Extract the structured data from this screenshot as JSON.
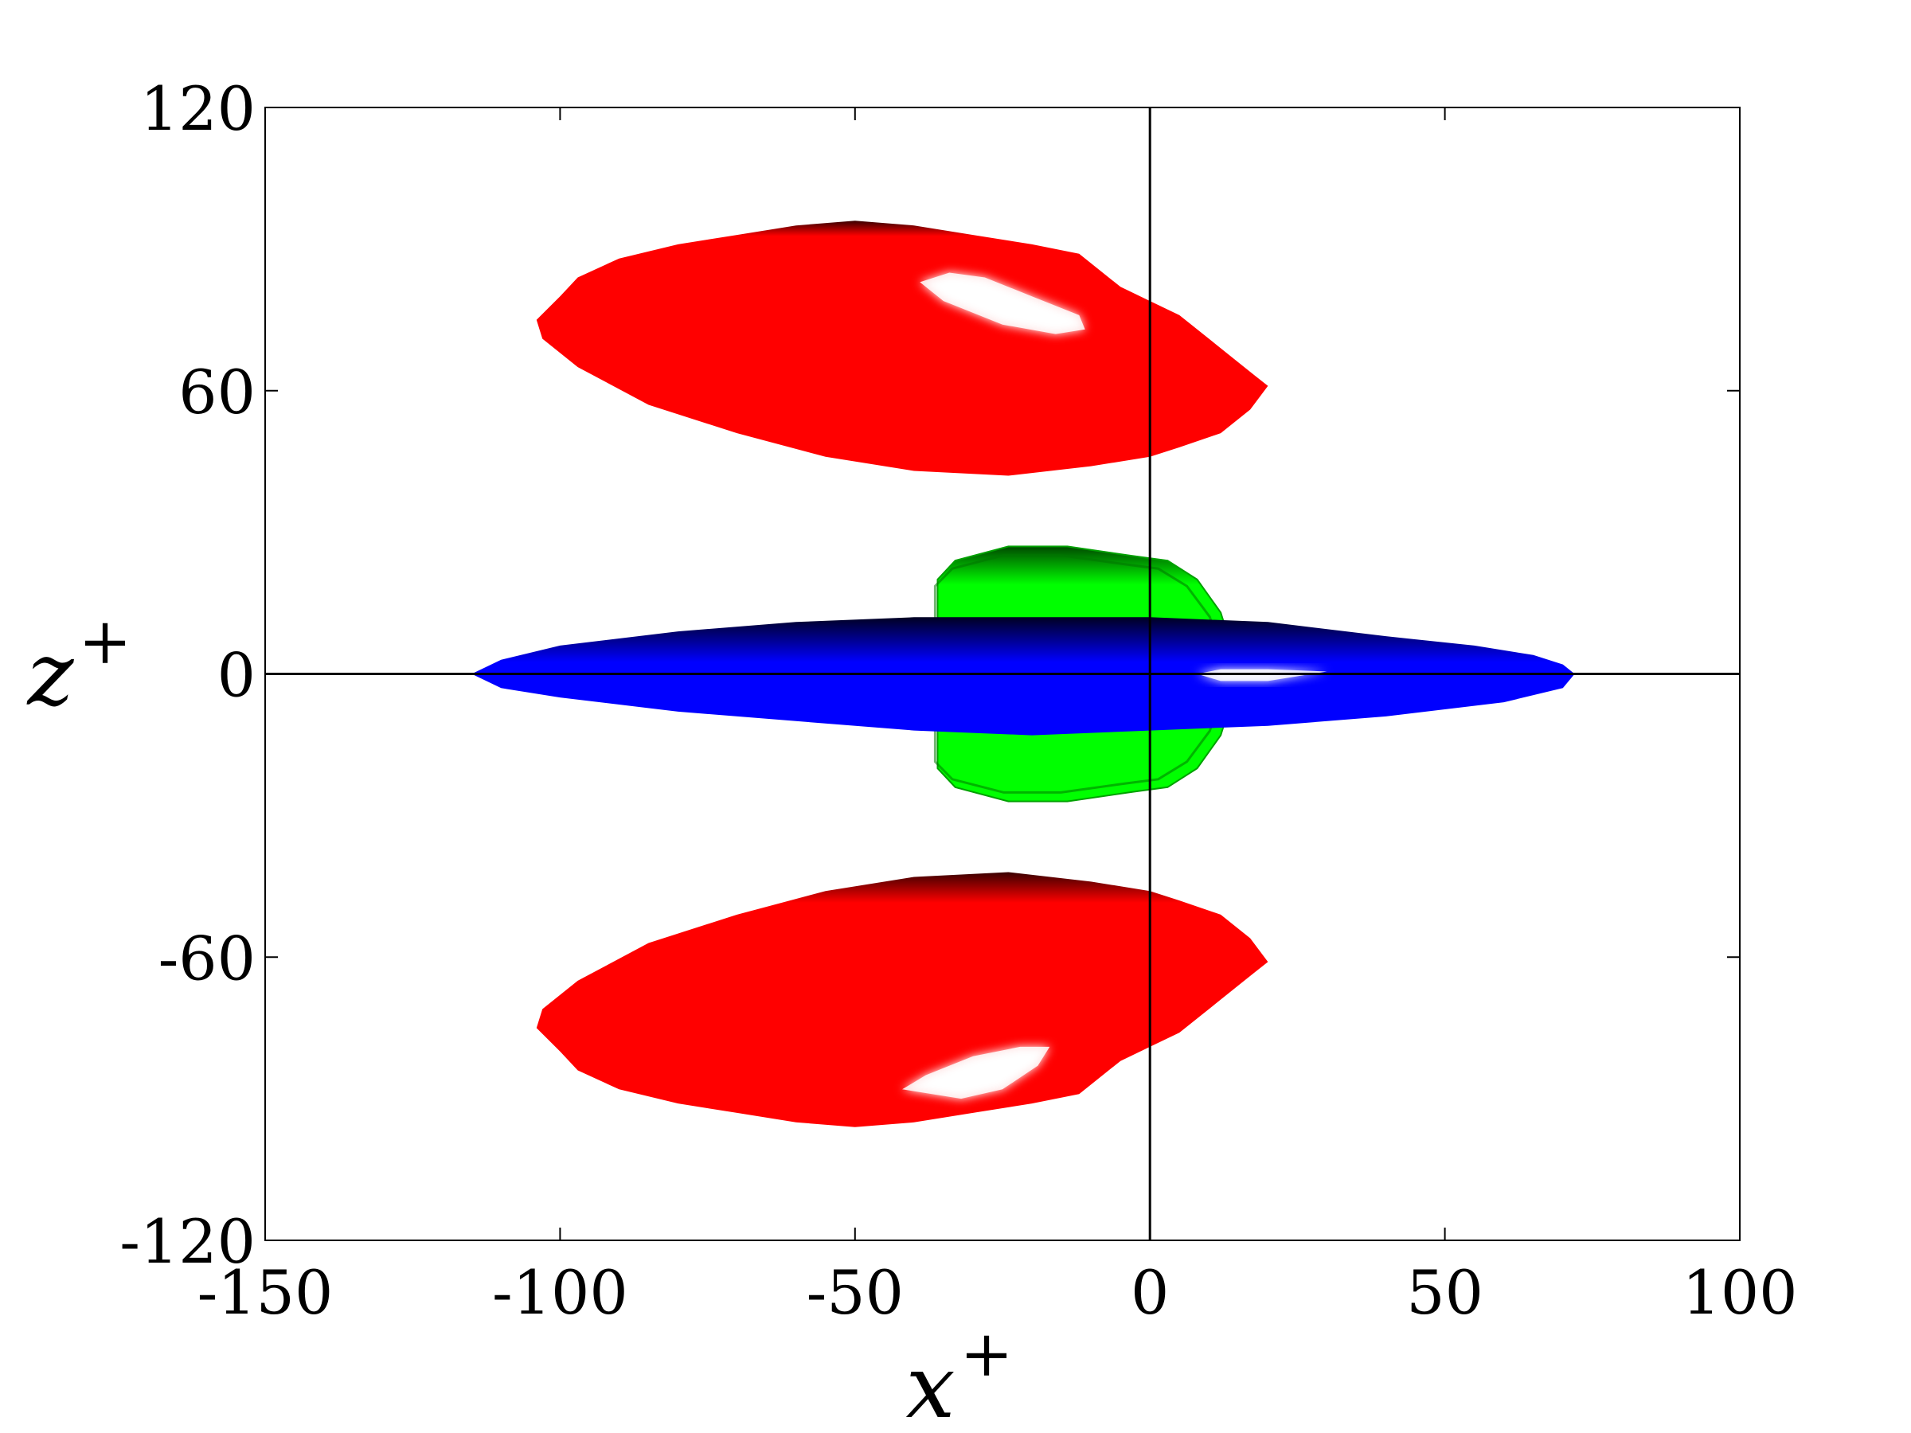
{
  "chart_data": {
    "type": "other",
    "xlabel": "x",
    "xlabel_sup": "+",
    "ylabel": "z",
    "ylabel_sup": "+",
    "xlim": [
      -150,
      100
    ],
    "ylim": [
      -120,
      120
    ],
    "x_ticks": [
      -150,
      -100,
      -50,
      0,
      50,
      100
    ],
    "y_ticks": [
      -120,
      -60,
      0,
      60,
      120
    ],
    "x_tick_labels": [
      "-150",
      "-100",
      "-50",
      "0",
      "50",
      "100"
    ],
    "y_tick_labels": [
      "-120",
      "-60",
      "0",
      "60",
      "120"
    ],
    "grid": false,
    "reference_lines": {
      "x": 0,
      "y": 0
    },
    "colors": {
      "red_structure": "#ff0000",
      "red_shade": "#4a0000",
      "blue_structure": "#0000ff",
      "blue_shade": "#000033",
      "green_structure": "#00ff00",
      "green_shade": "#004400",
      "highlight": "#ffffff"
    },
    "structures": [
      {
        "color": "red",
        "outline": [
          [
            -104,
            75
          ],
          [
            -100,
            80
          ],
          [
            -97,
            84
          ],
          [
            -90,
            88
          ],
          [
            -80,
            91
          ],
          [
            -70,
            93
          ],
          [
            -60,
            95
          ],
          [
            -50,
            96
          ],
          [
            -40,
            95
          ],
          [
            -30,
            93
          ],
          [
            -20,
            91
          ],
          [
            -12,
            89
          ],
          [
            -5,
            82
          ],
          [
            0,
            79
          ],
          [
            5,
            76
          ],
          [
            10,
            71
          ],
          [
            15,
            66
          ],
          [
            18,
            63
          ],
          [
            20,
            61
          ],
          [
            17,
            56
          ],
          [
            12,
            51
          ],
          [
            5,
            48
          ],
          [
            0,
            46
          ],
          [
            -10,
            44
          ],
          [
            -24,
            42
          ],
          [
            -40,
            43
          ],
          [
            -55,
            46
          ],
          [
            -70,
            51
          ],
          [
            -85,
            57
          ],
          [
            -97,
            65
          ],
          [
            -103,
            71
          ]
        ],
        "highlight": [
          [
            -39,
            83
          ],
          [
            -34,
            85
          ],
          [
            -28,
            84
          ],
          [
            -20,
            80
          ],
          [
            -12,
            76
          ],
          [
            -11,
            73
          ],
          [
            -16,
            72
          ],
          [
            -25,
            74
          ],
          [
            -35,
            79
          ]
        ]
      },
      {
        "color": "red",
        "outline": [
          [
            -104,
            -75
          ],
          [
            -100,
            -80
          ],
          [
            -97,
            -84
          ],
          [
            -90,
            -88
          ],
          [
            -80,
            -91
          ],
          [
            -70,
            -93
          ],
          [
            -60,
            -95
          ],
          [
            -50,
            -96
          ],
          [
            -40,
            -95
          ],
          [
            -30,
            -93
          ],
          [
            -20,
            -91
          ],
          [
            -12,
            -89
          ],
          [
            -5,
            -82
          ],
          [
            0,
            -79
          ],
          [
            5,
            -76
          ],
          [
            10,
            -71
          ],
          [
            15,
            -66
          ],
          [
            18,
            -63
          ],
          [
            20,
            -61
          ],
          [
            17,
            -56
          ],
          [
            12,
            -51
          ],
          [
            5,
            -48
          ],
          [
            0,
            -46
          ],
          [
            -10,
            -44
          ],
          [
            -24,
            -42
          ],
          [
            -40,
            -43
          ],
          [
            -55,
            -46
          ],
          [
            -70,
            -51
          ],
          [
            -85,
            -57
          ],
          [
            -97,
            -65
          ],
          [
            -103,
            -71
          ]
        ],
        "highlight": [
          [
            -42,
            -88
          ],
          [
            -32,
            -90
          ],
          [
            -25,
            -88
          ],
          [
            -19,
            -83
          ],
          [
            -17,
            -79
          ],
          [
            -22,
            -79
          ],
          [
            -30,
            -81
          ],
          [
            -38,
            -85
          ]
        ]
      },
      {
        "color": "green",
        "outline": [
          [
            -36,
            20
          ],
          [
            -33,
            24
          ],
          [
            -24,
            27
          ],
          [
            -14,
            27
          ],
          [
            -3,
            25
          ],
          [
            3,
            24
          ],
          [
            8,
            20
          ],
          [
            12,
            13
          ],
          [
            14,
            5
          ],
          [
            14,
            -5
          ],
          [
            12,
            -13
          ],
          [
            8,
            -20
          ],
          [
            3,
            -24
          ],
          [
            -3,
            -25
          ],
          [
            -14,
            -27
          ],
          [
            -24,
            -27
          ],
          [
            -33,
            -24
          ],
          [
            -36,
            -20
          ]
        ]
      },
      {
        "color": "blue",
        "outline": [
          [
            -115,
            0
          ],
          [
            -110,
            3
          ],
          [
            -100,
            6
          ],
          [
            -80,
            9
          ],
          [
            -60,
            11
          ],
          [
            -40,
            12
          ],
          [
            -20,
            12
          ],
          [
            0,
            12
          ],
          [
            20,
            11
          ],
          [
            40,
            8
          ],
          [
            55,
            6
          ],
          [
            65,
            4
          ],
          [
            70,
            2
          ],
          [
            72,
            0
          ],
          [
            70,
            -3
          ],
          [
            60,
            -6
          ],
          [
            40,
            -9
          ],
          [
            20,
            -11
          ],
          [
            0,
            -12
          ],
          [
            -20,
            -13
          ],
          [
            -40,
            -12
          ],
          [
            -60,
            -10
          ],
          [
            -80,
            -8
          ],
          [
            -100,
            -5
          ],
          [
            -110,
            -3
          ]
        ],
        "highlight": [
          [
            8,
            0
          ],
          [
            12,
            1
          ],
          [
            20,
            1
          ],
          [
            30,
            0.5
          ],
          [
            20,
            -1.5
          ],
          [
            12,
            -1.5
          ]
        ]
      }
    ]
  }
}
